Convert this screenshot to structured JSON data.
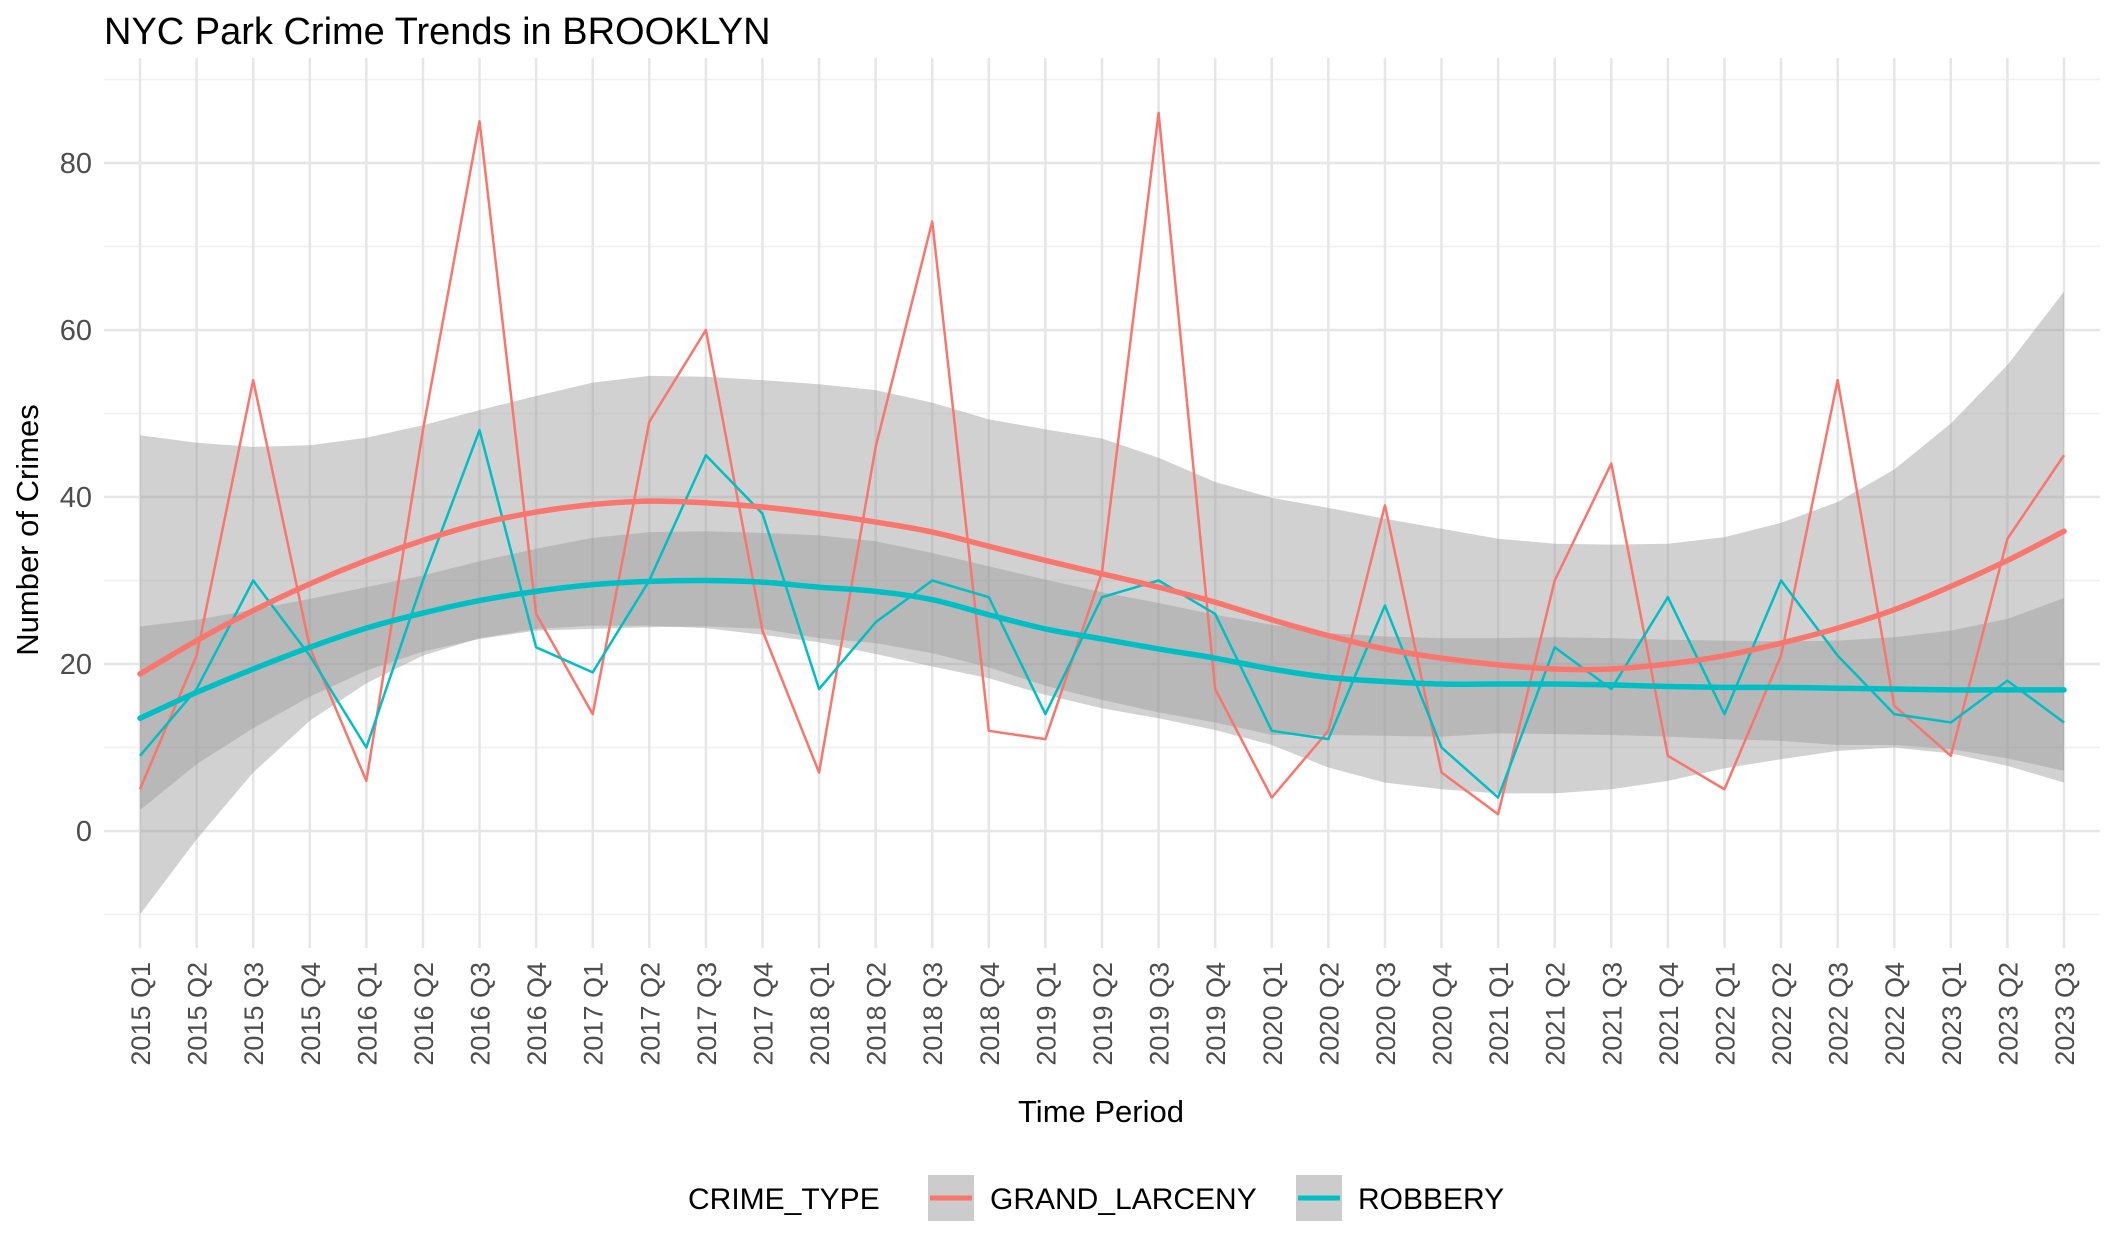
{
  "chart_data": {
    "type": "line",
    "title": "NYC Park Crime Trends in BROOKLYN",
    "xlabel": "Time Period",
    "ylabel": "Number of Crimes",
    "ylim": [
      -15,
      90
    ],
    "yticks": [
      0,
      20,
      40,
      60,
      80
    ],
    "grid": true,
    "legend": {
      "position": "bottom",
      "title": "CRIME_TYPE"
    },
    "categories": [
      "2015 Q1",
      "2015 Q2",
      "2015 Q3",
      "2015 Q4",
      "2016 Q1",
      "2016 Q2",
      "2016 Q3",
      "2016 Q4",
      "2017 Q1",
      "2017 Q2",
      "2017 Q3",
      "2017 Q4",
      "2018 Q1",
      "2018 Q2",
      "2018 Q3",
      "2018 Q4",
      "2019 Q1",
      "2019 Q2",
      "2019 Q3",
      "2019 Q4",
      "2020 Q1",
      "2020 Q2",
      "2020 Q3",
      "2020 Q4",
      "2021 Q1",
      "2021 Q2",
      "2021 Q3",
      "2021 Q4",
      "2022 Q1",
      "2022 Q2",
      "2022 Q3",
      "2022 Q4",
      "2023 Q1",
      "2023 Q2",
      "2023 Q3"
    ],
    "series": [
      {
        "name": "GRAND_LARCENY",
        "color": "#F8766D",
        "values": [
          5,
          21,
          54,
          22,
          6,
          48,
          85,
          26,
          14,
          49,
          60,
          24,
          7,
          46,
          73,
          12,
          11,
          31,
          86,
          17,
          4,
          12,
          39,
          7,
          2,
          30,
          44,
          9,
          5,
          21,
          54,
          15,
          9,
          35,
          45
        ],
        "smooth": [
          18.8,
          22.8,
          26.4,
          29.6,
          32.4,
          34.8,
          36.8,
          38.2,
          39.1,
          39.5,
          39.3,
          38.8,
          38.0,
          37.0,
          35.8,
          34.1,
          32.4,
          30.8,
          29.2,
          27.4,
          25.3,
          23.4,
          21.8,
          20.7,
          19.9,
          19.4,
          19.4,
          20.0,
          21.0,
          22.5,
          24.3,
          26.5,
          29.3,
          32.4,
          35.9
        ],
        "band_upper": [
          47.4,
          46.5,
          46.0,
          46.2,
          47.1,
          48.6,
          50.4,
          52.1,
          53.7,
          54.5,
          54.4,
          54.0,
          53.5,
          52.8,
          51.3,
          49.3,
          48.1,
          47.0,
          44.7,
          41.8,
          39.9,
          38.7,
          37.4,
          36.2,
          35.0,
          34.4,
          34.3,
          34.4,
          35.2,
          36.9,
          39.4,
          43.3,
          48.8,
          55.8,
          64.6
        ],
        "band_lower": [
          -10.0,
          -1.0,
          7.0,
          13.2,
          17.7,
          21.0,
          23.1,
          24.2,
          24.6,
          24.6,
          24.3,
          23.5,
          22.6,
          21.2,
          19.7,
          18.3,
          16.3,
          14.7,
          13.5,
          12.1,
          10.3,
          7.6,
          5.8,
          5.0,
          4.5,
          4.5,
          5.0,
          6.0,
          7.5,
          8.6,
          9.6,
          10.0,
          9.3,
          7.8,
          5.8
        ]
      },
      {
        "name": "ROBBERY",
        "color": "#00BFC4",
        "values": [
          9,
          17,
          30,
          21,
          10,
          30,
          48,
          22,
          19,
          30,
          45,
          38,
          17,
          25,
          30,
          28,
          14,
          28,
          30,
          26,
          12,
          11,
          27,
          10,
          4,
          22,
          17,
          28,
          14,
          30,
          21,
          14,
          13,
          18,
          13
        ],
        "smooth": [
          13.5,
          16.6,
          19.4,
          22.0,
          24.3,
          26.1,
          27.6,
          28.7,
          29.5,
          29.9,
          30.0,
          29.8,
          29.2,
          28.7,
          27.7,
          25.9,
          24.2,
          23.0,
          21.8,
          20.7,
          19.4,
          18.4,
          17.9,
          17.6,
          17.6,
          17.6,
          17.5,
          17.3,
          17.2,
          17.2,
          17.1,
          17.0,
          16.9,
          16.9,
          16.9
        ],
        "band_upper": [
          24.5,
          25.3,
          26.5,
          27.8,
          29.2,
          30.6,
          32.3,
          33.8,
          35.1,
          35.8,
          35.9,
          35.7,
          35.4,
          34.7,
          33.3,
          31.7,
          30.1,
          28.6,
          27.3,
          25.9,
          24.7,
          23.7,
          23.3,
          23.1,
          23.1,
          23.2,
          23.1,
          22.9,
          22.8,
          22.7,
          22.8,
          23.2,
          24.0,
          25.4,
          27.9
        ],
        "band_lower": [
          2.5,
          8.0,
          12.3,
          16.1,
          19.2,
          21.5,
          23.0,
          24.0,
          24.2,
          24.4,
          24.5,
          24.2,
          23.1,
          22.5,
          21.3,
          19.6,
          17.4,
          15.7,
          14.2,
          13.0,
          11.5,
          11.5,
          11.4,
          11.3,
          11.7,
          11.6,
          11.5,
          11.3,
          11.0,
          10.8,
          10.3,
          10.3,
          9.8,
          8.7,
          7.2
        ]
      }
    ]
  }
}
